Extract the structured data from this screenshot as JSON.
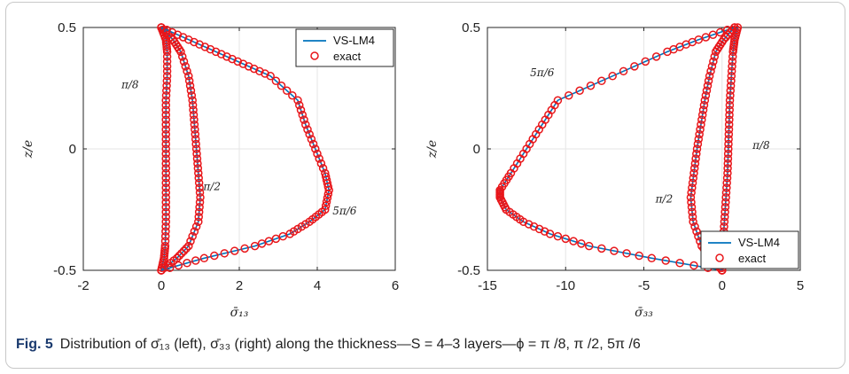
{
  "caption": {
    "label": "Fig. 5",
    "text": "Distribution of σ̄₁₃ (left), σ̄₃₃ (right) along the thickness—S = 4–3 layers—ϕ = π /8, π /2, 5π /6"
  },
  "chart_data": [
    {
      "type": "line",
      "xlabel": "σ̄₁₃",
      "ylabel": "z/e",
      "xlim": [
        -2,
        6
      ],
      "ylim": [
        -0.5,
        0.5
      ],
      "xticks": [
        "-2",
        "0",
        "2",
        "4",
        "6"
      ],
      "yticks": [
        "-0.5",
        "0",
        "0.5"
      ],
      "grid": true,
      "legend": {
        "placement": "top-right",
        "entries": [
          "VS-LM4",
          "exact"
        ]
      },
      "annotations": [
        {
          "text": "π/8",
          "x": -0.8,
          "y": 0.25
        },
        {
          "text": "π/2",
          "x": 1.3,
          "y": -0.17
        },
        {
          "text": "5π/6",
          "x": 4.7,
          "y": -0.27
        }
      ],
      "series": [
        {
          "name": "π/8",
          "y": [
            -0.5,
            -0.45,
            -0.4,
            -0.3,
            -0.2,
            -0.1,
            0.0,
            0.1,
            0.2,
            0.3,
            0.4,
            0.45,
            0.5
          ],
          "x": [
            0.0,
            0.07,
            0.1,
            0.12,
            0.12,
            0.12,
            0.12,
            0.12,
            0.12,
            0.15,
            0.15,
            0.12,
            0.0
          ]
        },
        {
          "name": "π/2",
          "y": [
            -0.5,
            -0.45,
            -0.4,
            -0.3,
            -0.2,
            -0.1,
            0.0,
            0.1,
            0.2,
            0.3,
            0.4,
            0.45,
            0.5
          ],
          "x": [
            0.0,
            0.4,
            0.7,
            0.95,
            1.0,
            0.95,
            0.9,
            0.85,
            0.8,
            0.7,
            0.5,
            0.3,
            0.0
          ]
        },
        {
          "name": "5π/6",
          "y": [
            -0.5,
            -0.45,
            -0.4,
            -0.35,
            -0.3,
            -0.25,
            -0.17,
            -0.1,
            0.0,
            0.1,
            0.2,
            0.3,
            0.35,
            0.4,
            0.45,
            0.5
          ],
          "x": [
            0.0,
            1.1,
            2.4,
            3.3,
            3.8,
            4.2,
            4.3,
            4.2,
            3.95,
            3.7,
            3.5,
            2.8,
            2.1,
            1.4,
            0.7,
            0.0
          ]
        }
      ]
    },
    {
      "type": "line",
      "xlabel": "σ̄₃₃",
      "ylabel": "z/e",
      "xlim": [
        -15,
        5
      ],
      "ylim": [
        -0.5,
        0.5
      ],
      "xticks": [
        "-15",
        "-10",
        "-5",
        "0",
        "5"
      ],
      "yticks": [
        "-0.5",
        "0",
        "0.5"
      ],
      "grid": true,
      "legend": {
        "placement": "bottom-right",
        "entries": [
          "VS-LM4",
          "exact"
        ]
      },
      "annotations": [
        {
          "text": "5π/6",
          "x": -11.5,
          "y": 0.3
        },
        {
          "text": "π/2",
          "x": -3.7,
          "y": -0.22
        },
        {
          "text": "π/8",
          "x": 2.5,
          "y": 0.0
        }
      ],
      "series": [
        {
          "name": "5π/6",
          "y": [
            -0.5,
            -0.45,
            -0.4,
            -0.35,
            -0.3,
            -0.25,
            -0.2,
            -0.17,
            -0.1,
            0.0,
            0.1,
            0.2,
            0.3,
            0.4,
            0.45,
            0.5
          ],
          "x": [
            0.0,
            -4.5,
            -8.5,
            -11.0,
            -12.7,
            -13.8,
            -14.2,
            -14.2,
            -13.5,
            -12.5,
            -11.5,
            -10.5,
            -7.0,
            -3.5,
            -1.5,
            0.8
          ]
        },
        {
          "name": "π/2",
          "y": [
            -0.5,
            -0.45,
            -0.4,
            -0.3,
            -0.2,
            -0.1,
            0.0,
            0.1,
            0.2,
            0.3,
            0.4,
            0.45,
            0.5
          ],
          "x": [
            0.0,
            -0.7,
            -1.3,
            -1.85,
            -2.0,
            -1.8,
            -1.6,
            -1.35,
            -1.1,
            -0.8,
            -0.4,
            0.1,
            0.8
          ]
        },
        {
          "name": "π/8",
          "y": [
            -0.5,
            -0.45,
            -0.4,
            -0.3,
            -0.2,
            -0.1,
            0.0,
            0.1,
            0.2,
            0.3,
            0.4,
            0.45,
            0.5
          ],
          "x": [
            0.0,
            0.0,
            0.05,
            0.15,
            0.25,
            0.35,
            0.4,
            0.45,
            0.5,
            0.6,
            0.7,
            0.8,
            1.0
          ]
        }
      ]
    }
  ],
  "colors": {
    "line": "#0072bd",
    "marker": "#e8161a",
    "grid": "#e6e6e6",
    "axis": "#262626"
  }
}
